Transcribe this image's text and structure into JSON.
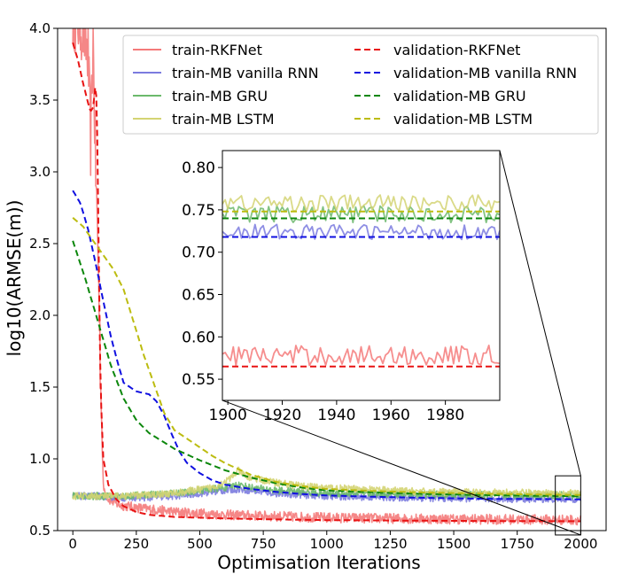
{
  "chart_data": [
    {
      "type": "line",
      "title": "",
      "xlabel": "Optimisation Iterations",
      "ylabel": "log10(ARMSE(m))",
      "xlim": [
        -60,
        2100
      ],
      "ylim": [
        0.5,
        4.0
      ],
      "xticks": [
        0,
        250,
        500,
        750,
        1000,
        1250,
        1500,
        1750,
        2000
      ],
      "yticks": [
        0.5,
        1.0,
        1.5,
        2.0,
        2.5,
        3.0,
        3.5,
        4.0
      ],
      "xtick_labels": [
        "0",
        "250",
        "500",
        "750",
        "1000",
        "1250",
        "1500",
        "1750",
        "2000"
      ],
      "ytick_labels": [
        "0.5",
        "1.0",
        "1.5",
        "2.0",
        "2.5",
        "3.0",
        "3.5",
        "4.0"
      ],
      "legend_position": "top-right",
      "legend": [
        "train-RKFNet",
        "train-MB vanilla RNN",
        "train-MB GRU",
        "train-MB LSTM",
        "validation-RKFNet",
        "validation-MB vanilla RNN",
        "validation-MB GRU",
        "validation-MB LSTM"
      ],
      "series": [
        {
          "name": "train-RKFNet",
          "color": "#f47a7a",
          "style": "solid",
          "noise": 0.035,
          "x": [
            0,
            20,
            40,
            60,
            70,
            80,
            90,
            100,
            110,
            120,
            140,
            180,
            250,
            400,
            600,
            800,
            1000,
            1500,
            2000
          ],
          "y": [
            4.1,
            4.05,
            4.0,
            3.8,
            3.2,
            3.9,
            3.0,
            2.4,
            1.5,
            0.8,
            0.72,
            0.68,
            0.66,
            0.63,
            0.61,
            0.6,
            0.59,
            0.58,
            0.575
          ]
        },
        {
          "name": "train-MB vanilla RNN",
          "color": "#7b7bdf",
          "style": "solid",
          "noise": 0.025,
          "x": [
            0,
            100,
            200,
            300,
            400,
            500,
            600,
            650,
            700,
            800,
            1000,
            1250,
            1500,
            1750,
            2000
          ],
          "y": [
            0.74,
            0.74,
            0.73,
            0.73,
            0.74,
            0.76,
            0.78,
            0.79,
            0.78,
            0.76,
            0.74,
            0.73,
            0.725,
            0.72,
            0.72
          ]
        },
        {
          "name": "train-MB GRU",
          "color": "#6cb96c",
          "style": "solid",
          "noise": 0.025,
          "x": [
            0,
            200,
            400,
            600,
            650,
            700,
            800,
            1000,
            1500,
            2000
          ],
          "y": [
            0.74,
            0.74,
            0.76,
            0.8,
            0.82,
            0.8,
            0.78,
            0.76,
            0.75,
            0.745
          ]
        },
        {
          "name": "train-MB LSTM",
          "color": "#d4d473",
          "style": "solid",
          "noise": 0.025,
          "x": [
            0,
            200,
            400,
            550,
            620,
            650,
            680,
            750,
            900,
            1100,
            1400,
            1700,
            2000
          ],
          "y": [
            0.74,
            0.74,
            0.76,
            0.8,
            0.86,
            0.92,
            0.88,
            0.85,
            0.81,
            0.79,
            0.77,
            0.765,
            0.76
          ]
        },
        {
          "name": "validation-RKFNet",
          "color": "#e81313",
          "style": "dashed",
          "noise": 0,
          "x": [
            0,
            20,
            40,
            60,
            70,
            80,
            90,
            95,
            100,
            105,
            110,
            120,
            140,
            170,
            200,
            250,
            300,
            400,
            600,
            800,
            1000,
            1500,
            2000
          ],
          "y": [
            3.9,
            3.78,
            3.62,
            3.48,
            3.42,
            3.45,
            3.62,
            3.4,
            2.7,
            2.0,
            1.45,
            1.0,
            0.82,
            0.72,
            0.67,
            0.63,
            0.61,
            0.595,
            0.585,
            0.578,
            0.573,
            0.568,
            0.565
          ]
        },
        {
          "name": "validation-MB vanilla RNN",
          "color": "#1010e0",
          "style": "dashed",
          "noise": 0,
          "x": [
            0,
            30,
            60,
            90,
            120,
            150,
            180,
            200,
            250,
            300,
            330,
            360,
            390,
            420,
            450,
            500,
            550,
            600,
            700,
            800,
            900,
            1000,
            1200,
            1400,
            1600,
            1800,
            2000
          ],
          "y": [
            2.87,
            2.78,
            2.6,
            2.36,
            2.1,
            1.85,
            1.65,
            1.53,
            1.47,
            1.45,
            1.4,
            1.3,
            1.17,
            1.05,
            0.97,
            0.9,
            0.85,
            0.82,
            0.79,
            0.77,
            0.755,
            0.745,
            0.735,
            0.728,
            0.722,
            0.72,
            0.718
          ]
        },
        {
          "name": "validation-MB GRU",
          "color": "#0c870c",
          "style": "dashed",
          "noise": 0,
          "x": [
            0,
            50,
            100,
            150,
            200,
            250,
            300,
            400,
            500,
            600,
            700,
            800,
            900,
            1000,
            1200,
            1400,
            1600,
            1800,
            2000
          ],
          "y": [
            2.52,
            2.25,
            1.95,
            1.65,
            1.42,
            1.27,
            1.18,
            1.07,
            0.99,
            0.92,
            0.87,
            0.83,
            0.8,
            0.78,
            0.765,
            0.755,
            0.748,
            0.743,
            0.74
          ]
        },
        {
          "name": "validation-MB LSTM",
          "color": "#bcbc10",
          "style": "dashed",
          "noise": 0,
          "x": [
            0,
            40,
            80,
            120,
            160,
            200,
            240,
            280,
            320,
            360,
            400,
            450,
            500,
            550,
            600,
            650,
            700,
            800,
            900,
            1000,
            1200,
            1400,
            1600,
            1800,
            2000
          ],
          "y": [
            2.68,
            2.62,
            2.52,
            2.42,
            2.32,
            2.18,
            1.95,
            1.72,
            1.52,
            1.32,
            1.2,
            1.14,
            1.08,
            1.02,
            0.97,
            0.93,
            0.89,
            0.84,
            0.81,
            0.79,
            0.775,
            0.765,
            0.758,
            0.752,
            0.748
          ]
        }
      ]
    },
    {
      "type": "line",
      "title": "",
      "xlabel": "",
      "ylabel": "",
      "xlim": [
        1898,
        2000
      ],
      "ylim": [
        0.525,
        0.82
      ],
      "xticks": [
        1900,
        1920,
        1940,
        1960,
        1980
      ],
      "yticks": [
        0.55,
        0.6,
        0.65,
        0.7,
        0.75,
        0.8
      ],
      "xtick_labels": [
        "1900",
        "1920",
        "1940",
        "1960",
        "1980"
      ],
      "ytick_labels": [
        "0.55",
        "0.60",
        "0.65",
        "0.70",
        "0.75",
        "0.80"
      ],
      "zoom_region": {
        "x": [
          1900,
          2000
        ],
        "y": [
          0.525,
          0.82
        ]
      },
      "series": [
        {
          "name": "train-RKFNet",
          "color": "#f47a7a",
          "style": "solid",
          "mean": 0.578,
          "noise": 0.012
        },
        {
          "name": "train-MB vanilla RNN",
          "color": "#7b7bdf",
          "style": "solid",
          "mean": 0.724,
          "noise": 0.009
        },
        {
          "name": "train-MB GRU",
          "color": "#6cb96c",
          "style": "solid",
          "mean": 0.745,
          "noise": 0.01
        },
        {
          "name": "train-MB LSTM",
          "color": "#d4d473",
          "style": "solid",
          "mean": 0.758,
          "noise": 0.01
        },
        {
          "name": "validation-RKFNet",
          "color": "#e81313",
          "style": "dashed",
          "mean": 0.565,
          "noise": 0
        },
        {
          "name": "validation-MB vanilla RNN",
          "color": "#1010e0",
          "style": "dashed",
          "mean": 0.718,
          "noise": 0
        },
        {
          "name": "validation-MB GRU",
          "color": "#0c870c",
          "style": "dashed",
          "mean": 0.74,
          "noise": 0
        },
        {
          "name": "validation-MB LSTM",
          "color": "#bcbc10",
          "style": "dashed",
          "mean": 0.748,
          "noise": 0
        }
      ]
    }
  ]
}
